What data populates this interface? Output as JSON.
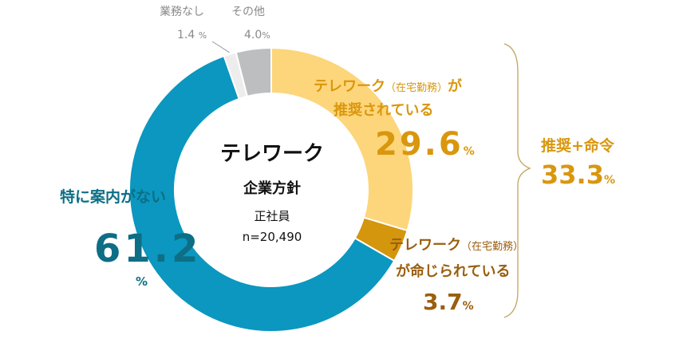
{
  "chart_data": {
    "type": "pie",
    "donut": true,
    "slices": [
      {
        "label": "テレワーク(在宅勤務)が推奨されている",
        "value": 29.6,
        "color": "#FDD57A"
      },
      {
        "label": "テレワーク(在宅勤務)が命じられている",
        "value": 3.7,
        "color": "#D4960C"
      },
      {
        "label": "特に案内がない",
        "value": 61.2,
        "color": "#0B97BF"
      },
      {
        "label": "業務なし",
        "value": 1.4,
        "color": "#EDEDED"
      },
      {
        "label": "その他",
        "value": 4.0,
        "color": "#BDBEC0"
      }
    ]
  },
  "center": {
    "title": "テレワーク",
    "subtitle": "企業方針",
    "group": "正社員",
    "n": "n=20,490"
  },
  "labels": {
    "recommended_line1": "テレワーク",
    "recommended_paren": "（在宅勤務）",
    "recommended_ga": "が",
    "recommended_line2": "推奨されている",
    "recommended_value": "29.6",
    "ordered_line1": "テレワーク",
    "ordered_paren": "（在宅勤務）",
    "ordered_line2": "が命じられている",
    "ordered_value": "3.7",
    "none_label": "特に案内がない",
    "none_value": "61.2",
    "nowork_label": "業務なし",
    "nowork_value": "1.4",
    "other_label": "その他",
    "other_value": "4.0",
    "total_label": "推奨+命令",
    "total_value": "33.3",
    "unit": "%"
  }
}
